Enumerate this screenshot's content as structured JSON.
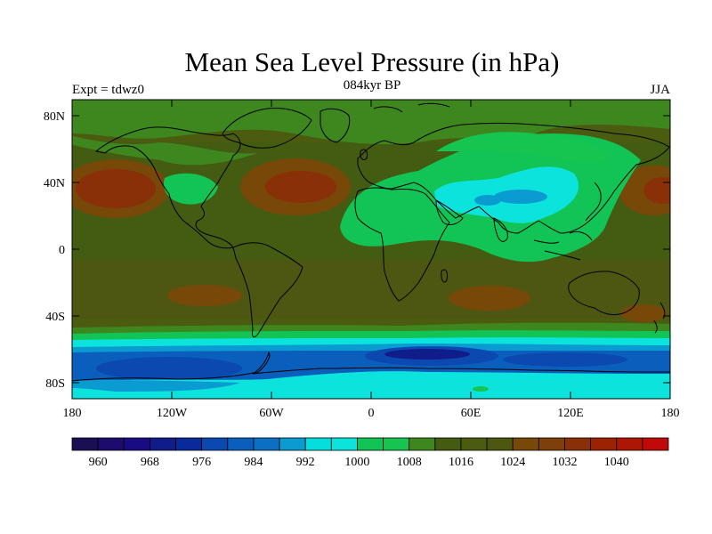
{
  "title": "Mean Sea Level Pressure (in hPa)",
  "experiment": "Expt = tdwz0",
  "period": "084kyr BP",
  "season": "JJA",
  "lat_ticks": [
    "80N",
    "40N",
    "0",
    "40S",
    "80S"
  ],
  "lon_ticks": [
    "180",
    "120W",
    "60W",
    "0",
    "60E",
    "120E",
    "180"
  ],
  "colorbar": {
    "colors": [
      "#1a0f52",
      "#1d0c6e",
      "#190c82",
      "#0f1c8a",
      "#0a2a9a",
      "#0b49b0",
      "#0a5ebc",
      "#0b6fc3",
      "#0a9cd0",
      "#06dede",
      "#0de3dd",
      "#12c455",
      "#15c550",
      "#3e871f",
      "#445b12",
      "#4b5c10",
      "#4d5712",
      "#784808",
      "#7d4008",
      "#8a3008",
      "#9b2304",
      "#ae1604",
      "#c00a0a"
    ],
    "labels": [
      "960",
      "968",
      "976",
      "984",
      "992",
      "1000",
      "1008",
      "1016",
      "1024",
      "1032",
      "1040"
    ]
  }
}
